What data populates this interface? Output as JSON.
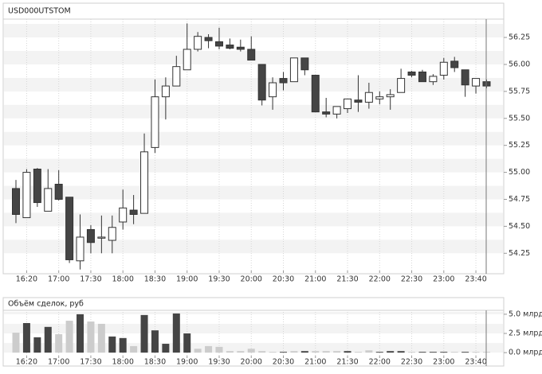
{
  "chart_data": [
    {
      "type": "candlestick",
      "title": "USD000UTSTOM",
      "categories": [
        null,
        "16:20",
        null,
        null,
        "17:00",
        null,
        null,
        "17:30",
        null,
        null,
        "18:00",
        null,
        null,
        "18:30",
        null,
        null,
        "19:00",
        null,
        null,
        "19:30",
        null,
        null,
        "20:00",
        null,
        null,
        "20:30",
        null,
        null,
        "21:00",
        null,
        null,
        "21:30",
        null,
        null,
        "22:00",
        null,
        null,
        "22:30",
        null,
        null,
        "23:00",
        null,
        null,
        "23:40",
        null
      ],
      "open": [
        54.85,
        54.58,
        55.03,
        54.64,
        54.89,
        54.77,
        54.18,
        54.47,
        54.39,
        54.37,
        54.54,
        54.65,
        54.62,
        55.23,
        55.7,
        55.8,
        55.95,
        56.14,
        56.25,
        56.21,
        56.18,
        56.16,
        56.14,
        56.0,
        55.7,
        55.87,
        55.84,
        56.06,
        55.9,
        55.56,
        55.54,
        55.59,
        55.67,
        55.65,
        55.68,
        55.7,
        55.74,
        55.93,
        55.93,
        55.84,
        55.9,
        56.03,
        55.95,
        55.8,
        55.84
      ],
      "high": [
        54.93,
        55.03,
        55.04,
        55.03,
        55.02,
        54.77,
        54.61,
        54.51,
        54.6,
        54.6,
        54.84,
        54.79,
        55.36,
        55.86,
        55.88,
        56.08,
        56.38,
        56.3,
        56.28,
        56.34,
        56.24,
        56.23,
        56.26,
        56.0,
        55.88,
        55.93,
        56.06,
        56.06,
        55.9,
        55.69,
        55.61,
        55.68,
        55.9,
        55.83,
        55.75,
        55.77,
        55.96,
        55.94,
        55.95,
        55.91,
        56.06,
        56.07,
        55.95,
        55.87,
        55.86
      ],
      "low": [
        54.53,
        54.58,
        54.68,
        54.64,
        54.74,
        54.16,
        54.1,
        54.25,
        54.25,
        54.25,
        54.47,
        54.52,
        54.62,
        55.18,
        55.49,
        55.8,
        55.95,
        56.12,
        56.15,
        56.14,
        56.14,
        56.12,
        56.04,
        55.62,
        55.58,
        55.76,
        55.84,
        55.9,
        55.56,
        55.51,
        55.5,
        55.55,
        55.56,
        55.59,
        55.63,
        55.58,
        55.74,
        55.88,
        55.84,
        55.81,
        55.86,
        55.93,
        55.7,
        55.73,
        55.78
      ],
      "close": [
        54.61,
        55.0,
        54.72,
        54.85,
        54.75,
        54.19,
        54.4,
        54.35,
        54.4,
        54.49,
        54.67,
        54.61,
        55.19,
        55.7,
        55.8,
        55.98,
        56.14,
        56.26,
        56.22,
        56.17,
        56.15,
        56.14,
        56.04,
        55.67,
        55.83,
        55.83,
        56.06,
        55.95,
        55.56,
        55.54,
        55.61,
        55.68,
        55.65,
        55.74,
        55.7,
        55.72,
        55.87,
        55.9,
        55.84,
        55.89,
        56.02,
        55.97,
        55.81,
        55.87,
        55.8
      ],
      "up_color": "#ffffff",
      "down_color": "#454545",
      "ylim": [
        54.09,
        56.42
      ],
      "yticks": [
        54.25,
        {
          "value": 54.5,
          "label": "54.50"
        },
        54.75,
        {
          "value": 55,
          "label": "55.00"
        },
        55.25,
        {
          "value": 55.5,
          "label": "55.50"
        },
        55.75,
        {
          "value": 56,
          "label": "56.00"
        },
        56.25
      ],
      "grid": true
    },
    {
      "type": "bar",
      "title": "Объём сделок, руб",
      "categories": [
        null,
        "16:20",
        null,
        null,
        "17:00",
        null,
        null,
        "17:30",
        null,
        null,
        "18:00",
        null,
        null,
        "18:30",
        null,
        null,
        "19:00",
        null,
        null,
        "19:30",
        null,
        null,
        "20:00",
        null,
        null,
        "20:30",
        null,
        null,
        "21:00",
        null,
        null,
        "21:30",
        null,
        null,
        "22:00",
        null,
        null,
        "22:30",
        null,
        null,
        "23:00",
        null,
        null,
        "23:40",
        null
      ],
      "values": [
        2.6,
        3.85,
        2.0,
        3.35,
        2.4,
        4.15,
        5.0,
        4.05,
        3.75,
        2.1,
        1.9,
        0.85,
        4.9,
        2.9,
        1.15,
        5.1,
        2.5,
        0.5,
        0.85,
        0.75,
        0.2,
        0.2,
        0.5,
        0.2,
        0.1,
        0.1,
        0.2,
        0.2,
        0.2,
        0.2,
        0.2,
        0.2,
        0.1,
        0.3,
        0.1,
        0.2,
        0.2,
        0.1,
        0.1,
        0.1,
        0.1,
        0.1,
        0.1,
        0.1,
        0.1
      ],
      "colors": [
        "#cccccc",
        "#454545",
        "#454545",
        "#454545",
        "#cccccc",
        "#cccccc",
        "#454545",
        "#cccccc",
        "#cccccc",
        "#454545",
        "#454545",
        "#cccccc",
        "#454545",
        "#454545",
        "#454545",
        "#454545",
        "#454545",
        "#cccccc",
        "#cccccc",
        "#cccccc",
        "#cccccc",
        "#cccccc",
        "#cccccc",
        "#cccccc",
        "#cccccc",
        "#454545",
        "#cccccc",
        "#454545",
        "#cccccc",
        "#cccccc",
        "#cccccc",
        "#454545",
        "#cccccc",
        "#cccccc",
        "#454545",
        "#454545",
        "#454545",
        "#cccccc",
        "#454545",
        "#454545",
        "#454545",
        "#cccccc",
        "#454545",
        "#cccccc",
        "#cccccc"
      ],
      "ylim": [
        -0.4,
        5.3
      ],
      "yticks": [
        {
          "value": 0,
          "label": "0.0 млрд"
        },
        {
          "value": 2.5,
          "label": "2.5 млрд"
        },
        {
          "value": 5,
          "label": "5.0 млрд"
        }
      ],
      "grid": true
    }
  ]
}
